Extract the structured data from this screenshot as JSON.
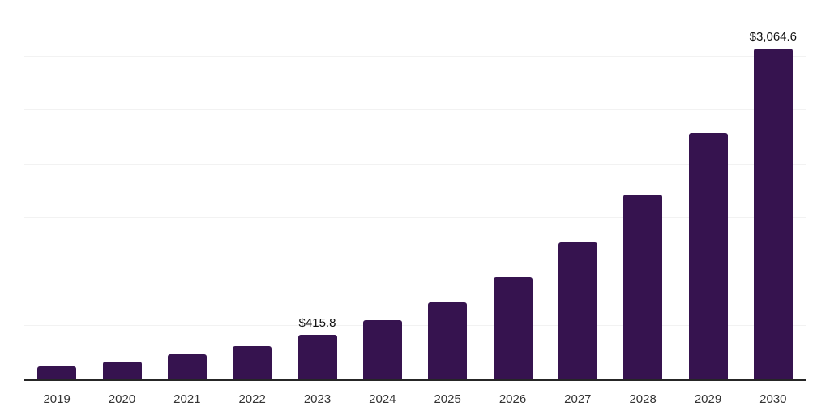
{
  "chart_data": {
    "type": "bar",
    "title": "",
    "xlabel": "",
    "ylabel": "",
    "categories": [
      "2019",
      "2020",
      "2021",
      "2022",
      "2023",
      "2024",
      "2025",
      "2026",
      "2027",
      "2028",
      "2029",
      "2030"
    ],
    "values": [
      120,
      167,
      234,
      310,
      415.8,
      545,
      715,
      945,
      1270,
      1710,
      2285,
      3064.6
    ],
    "value_labels": [
      "",
      "",
      "",
      "",
      "$415.8",
      "",
      "",
      "",
      "",
      "",
      "",
      "$3,064.6"
    ],
    "ylim": [
      0,
      3500
    ],
    "gridline_step": 500,
    "grid": true,
    "y_tick_labels_visible": false,
    "legend": "none"
  },
  "colors": {
    "bar": "#36134f",
    "axis": "#262626",
    "gridline": "#f2f2f2",
    "value_label": "#111111",
    "tick_label": "#333333",
    "background": "#ffffff"
  }
}
